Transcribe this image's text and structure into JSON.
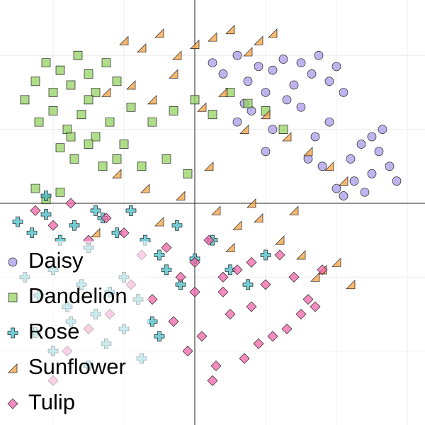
{
  "chart_data": {
    "type": "scatter",
    "xlim": [
      -55,
      65
    ],
    "ylim": [
      -60,
      55
    ],
    "xticks": [
      -40,
      -20,
      0,
      20,
      40,
      60
    ],
    "yticks": [
      -40,
      -20,
      0,
      20,
      40
    ],
    "grid": true,
    "legend": "lower left",
    "series": [
      {
        "name": "Daisy",
        "color": "#a99be8",
        "marker": "circle",
        "x": [
          5,
          8,
          12,
          15,
          18,
          20,
          22,
          25,
          28,
          30,
          33,
          35,
          38,
          40,
          42,
          12,
          16,
          22,
          30,
          34,
          38,
          44,
          47,
          50,
          52,
          55,
          57,
          42,
          45,
          48,
          50,
          53,
          36,
          40,
          32,
          26,
          20,
          14
        ],
        "values": [
          38,
          35,
          40,
          33,
          37,
          30,
          36,
          39,
          32,
          38,
          35,
          40,
          33,
          37,
          30,
          22,
          25,
          20,
          26,
          18,
          22,
          12,
          16,
          8,
          14,
          10,
          6,
          2,
          6,
          3,
          18,
          20,
          10,
          4,
          12,
          28,
          14,
          27
        ]
      },
      {
        "name": "Dandelion",
        "color": "#94d163",
        "marker": "square",
        "x": [
          -48,
          -45,
          -42,
          -40,
          -38,
          -35,
          -33,
          -30,
          -28,
          -25,
          -22,
          -44,
          -40,
          -36,
          -32,
          -28,
          -24,
          -38,
          -34,
          -30,
          -26,
          -22,
          -18,
          -12,
          -6,
          0,
          5,
          10,
          15,
          20,
          25,
          -15,
          -8,
          -2,
          -45,
          -42,
          -38,
          -20,
          -30,
          -35
        ],
        "values": [
          28,
          33,
          38,
          30,
          36,
          32,
          40,
          35,
          30,
          38,
          33,
          22,
          25,
          20,
          24,
          18,
          22,
          15,
          12,
          16,
          10,
          12,
          26,
          22,
          25,
          28,
          24,
          30,
          27,
          25,
          20,
          10,
          12,
          8,
          4,
          1,
          3,
          16,
          28,
          18
        ]
      },
      {
        "name": "Rose",
        "color": "#45bcc6",
        "marker": "plus",
        "x": [
          -50,
          -46,
          -42,
          -38,
          -34,
          -30,
          -26,
          -22,
          -18,
          -14,
          -10,
          -48,
          -44,
          -40,
          -36,
          -32,
          -28,
          -24,
          -20,
          -16,
          -12,
          -8,
          -4,
          0,
          -45,
          -40,
          -35,
          -30,
          -25,
          -20,
          -15,
          -10,
          5,
          10,
          15,
          20,
          -5,
          -42,
          -28
        ],
        "values": [
          -5,
          -8,
          -3,
          -10,
          -6,
          -12,
          -4,
          -8,
          -2,
          -10,
          -14,
          -20,
          -25,
          -18,
          -28,
          -22,
          -30,
          -24,
          -20,
          -26,
          -32,
          -18,
          -22,
          -15,
          -35,
          -40,
          -32,
          -44,
          -38,
          -34,
          -42,
          -36,
          -10,
          -18,
          -22,
          -14,
          -6,
          2,
          -2
        ]
      },
      {
        "name": "Sunflower",
        "color": "#f5a040",
        "marker": "triangle",
        "x": [
          -20,
          -15,
          -10,
          -5,
          0,
          5,
          10,
          15,
          18,
          22,
          -25,
          -18,
          -12,
          -6,
          2,
          8,
          14,
          20,
          26,
          32,
          38,
          42,
          -22,
          -14,
          -4,
          6,
          12,
          18,
          24,
          30,
          36,
          44,
          -28,
          -10,
          4,
          10,
          16,
          28,
          34,
          40
        ],
        "values": [
          44,
          42,
          46,
          40,
          43,
          45,
          47,
          41,
          44,
          46,
          30,
          32,
          28,
          35,
          26,
          30,
          20,
          24,
          18,
          14,
          10,
          6,
          8,
          4,
          2,
          -2,
          -6,
          -4,
          -10,
          -14,
          -18,
          -22,
          -8,
          -5,
          10,
          -12,
          0,
          -2,
          -20,
          -16
        ]
      },
      {
        "name": "Tulip",
        "color": "#f264a8",
        "marker": "diamond",
        "x": [
          -45,
          -40,
          -35,
          -30,
          -25,
          -20,
          -15,
          -8,
          -4,
          0,
          4,
          8,
          12,
          16,
          20,
          24,
          28,
          32,
          36,
          -6,
          2,
          10,
          18,
          26,
          34,
          -2,
          6,
          14,
          22,
          30,
          -12,
          -18,
          -24,
          -30,
          -36,
          -40,
          0,
          8,
          16,
          5
        ],
        "values": [
          -2,
          -6,
          0,
          -10,
          -4,
          -8,
          -14,
          -12,
          -20,
          -16,
          -10,
          -24,
          -18,
          -28,
          -22,
          -14,
          -20,
          -26,
          -18,
          -32,
          -36,
          -30,
          -38,
          -34,
          -28,
          -40,
          -44,
          -42,
          -36,
          -30,
          -26,
          -22,
          -30,
          -34,
          -40,
          -48,
          -24,
          -20,
          -16,
          -48
        ]
      }
    ]
  }
}
